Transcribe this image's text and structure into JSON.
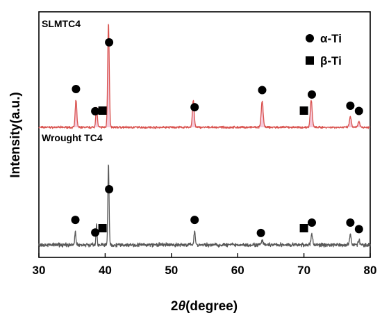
{
  "chart_data": {
    "type": "line",
    "xlabel_prefix": "2",
    "xlabel_symbol": "θ",
    "xlabel_suffix": "(degree)",
    "ylabel": "Intensity(a.u.)",
    "xlim": [
      30,
      80
    ],
    "x_ticks": [
      "30",
      "40",
      "50",
      "60",
      "70",
      "80"
    ],
    "y_ticks": false,
    "grid": false,
    "legend_position": "top-right",
    "legend": [
      {
        "marker": "circle",
        "label": "α-Ti"
      },
      {
        "marker": "square",
        "label": "β-Ti"
      }
    ],
    "series": [
      {
        "name": "SLMTC4",
        "color": "#d9534f",
        "shade_color": "#f2b8cf",
        "baseline": 0.0,
        "noise": 0.012,
        "peaks": [
          {
            "x": 35.6,
            "h": 0.26,
            "w": 0.17
          },
          {
            "x": 38.7,
            "h": 0.19,
            "w": 0.17
          },
          {
            "x": 40.5,
            "h": 1.0,
            "w": 0.17
          },
          {
            "x": 53.3,
            "h": 0.26,
            "w": 0.19
          },
          {
            "x": 63.7,
            "h": 0.25,
            "w": 0.21
          },
          {
            "x": 71.1,
            "h": 0.26,
            "w": 0.21
          },
          {
            "x": 77.0,
            "h": 0.1,
            "w": 0.2
          },
          {
            "x": 78.3,
            "h": 0.05,
            "w": 0.2
          }
        ],
        "alpha_markers": [
          35.6,
          38.5,
          40.6,
          53.5,
          63.7,
          71.2,
          77.0,
          78.3
        ],
        "beta_markers": [
          39.6,
          70.0
        ]
      },
      {
        "name": "Wrought TC4",
        "color": "#595959",
        "baseline": 0.0,
        "noise": 0.025,
        "peaks": [
          {
            "x": 35.5,
            "h": 0.15,
            "w": 0.12
          },
          {
            "x": 38.7,
            "h": 0.21,
            "w": 0.12
          },
          {
            "x": 40.5,
            "h": 0.87,
            "w": 0.13
          },
          {
            "x": 53.5,
            "h": 0.15,
            "w": 0.15
          },
          {
            "x": 63.7,
            "h": 0.05,
            "w": 0.15
          },
          {
            "x": 71.2,
            "h": 0.12,
            "w": 0.17
          },
          {
            "x": 77.0,
            "h": 0.12,
            "w": 0.17
          },
          {
            "x": 78.3,
            "h": 0.05,
            "w": 0.17
          }
        ],
        "alpha_markers": [
          35.5,
          38.5,
          40.6,
          53.5,
          63.5,
          71.2,
          77.0,
          78.3
        ],
        "beta_markers": [
          39.6,
          70.0
        ]
      }
    ]
  }
}
